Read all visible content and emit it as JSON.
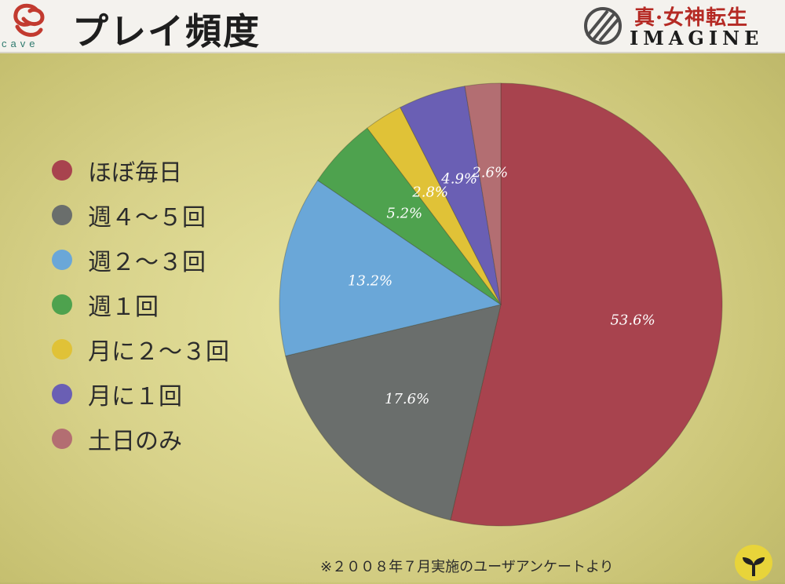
{
  "header": {
    "title": "プレイ頻度",
    "logo_text": "cave",
    "brand_jp": "真·女神転生",
    "brand_en": "IMAGINE"
  },
  "footnote": "※２００８年７月実施のユーザアンケートより",
  "chart_data": {
    "type": "pie",
    "title": "プレイ頻度",
    "legend_position": "left",
    "categories": [
      "ほぼ毎日",
      "週４～５回",
      "週２～３回",
      "週１回",
      "月に２～３回",
      "月に１回",
      "土日のみ"
    ],
    "values": [
      53.6,
      17.6,
      13.2,
      5.2,
      2.8,
      4.9,
      2.6
    ],
    "labels": [
      "53.6%",
      "17.6%",
      "13.2%",
      "5.2%",
      "2.8%",
      "4.9%",
      "2.6%"
    ],
    "colors": [
      "#a8434e",
      "#6a6e6c",
      "#6aa7d8",
      "#4ea24e",
      "#e0c237",
      "#6a5fb4",
      "#b36e72"
    ]
  }
}
